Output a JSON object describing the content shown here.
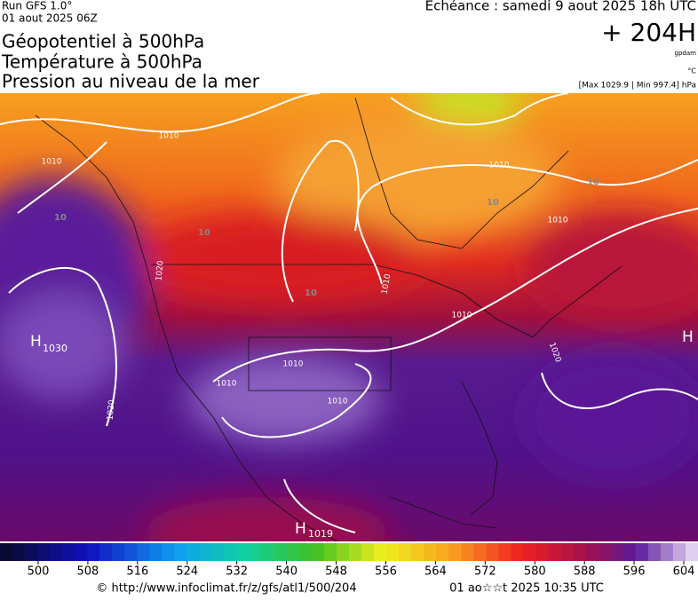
{
  "header": {
    "run": "Run GFS 1.0°",
    "run_date": "01 aout 2025 06Z",
    "titles": [
      "Géopotentiel à 500hPa",
      "Température à 500hPa",
      "Pression au niveau de la mer"
    ],
    "forecast": "Echéance : samedi 9 aout 2025 18h UTC",
    "lead": "+ 204H",
    "units": [
      "gpdam",
      "°C"
    ],
    "range": "[Max 1029.9 | Min 997.4] hPa"
  },
  "map": {
    "isobar_labels": [
      "1010",
      "1010",
      "1010",
      "1010",
      "1010",
      "1010",
      "1020",
      "1010",
      "1010",
      "1010",
      "1020",
      "1020"
    ],
    "isotherm_labels": [
      "10",
      "10",
      "10",
      "10",
      "10"
    ],
    "highs": [
      {
        "symbol": "H",
        "value": "1030"
      },
      {
        "symbol": "H",
        "value": "1019"
      },
      {
        "symbol": "H"
      }
    ]
  },
  "colorbar": {
    "ticks": [
      500,
      508,
      516,
      524,
      532,
      540,
      548,
      556,
      564,
      572,
      580,
      588,
      596,
      604
    ]
  },
  "footer": {
    "source": "© http://www.infoclimat.fr/z/gfs/atl1/500/204",
    "generated": "01 ao☆☆t 2025 10:35 UTC"
  }
}
